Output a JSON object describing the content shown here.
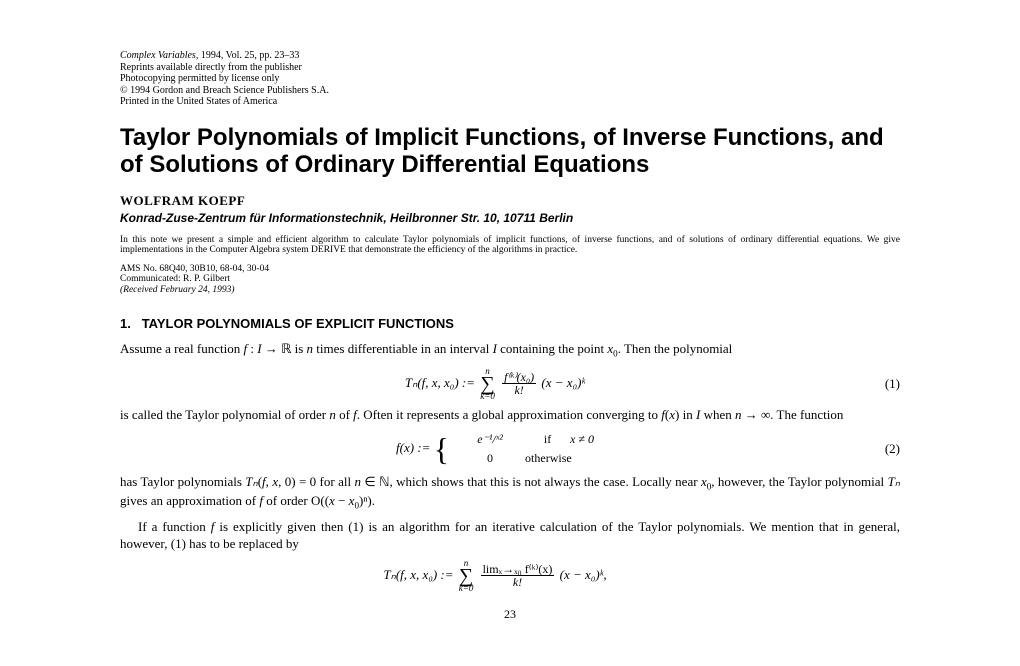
{
  "header": {
    "line1_italic": "Complex Variables",
    "line1_rest": ", 1994, Vol. 25, pp. 23–33",
    "line2": "Reprints available directly from the publisher",
    "line3": "Photocopying permitted by license only",
    "line4": "© 1994 Gordon and Breach Science Publishers S.A.",
    "line5": "Printed in the United States of America"
  },
  "title": "Taylor Polynomials of Implicit Functions, of Inverse Functions, and of Solutions of Ordinary Differential Equations",
  "author": "WOLFRAM KOEPF",
  "affiliation": "Konrad-Zuse-Zentrum für Informationstechnik, Heilbronner Str. 10, 10711 Berlin",
  "abstract": "In this note we present a simple and efficient algorithm to calculate Taylor polynomials of implicit functions, of inverse functions, and of solutions of ordinary differential equations. We give implementations in the Computer Algebra system DERIVE that demonstrate the efficiency of the algorithms in practice.",
  "meta": {
    "ams": "AMS No. 68Q40, 30B10, 68-04, 30-04",
    "communicated": "Communicated: R. P. Gilbert",
    "received": "(Received February 24, 1993)"
  },
  "section1": {
    "number": "1.",
    "heading": "TAYLOR POLYNOMIALS OF EXPLICIT FUNCTIONS"
  },
  "para1a": "Assume a real function ",
  "para1b": " is ",
  "para1c": " times differentiable in an interval ",
  "para1d": " containing the point ",
  "para1e": ". Then the polynomial",
  "eq1": {
    "lhs": "Tₙ(f, x, x₀) := ",
    "sumtop": "n",
    "sumbot": "k=0",
    "fractop": "f⁽ᵏ⁾(x₀)",
    "fracbot": "k!",
    "rhs": "(x − x₀)ᵏ",
    "num": "(1)"
  },
  "para2a": "is called the Taylor polynomial of order ",
  "para2b": " of ",
  "para2c": ". Often it represents a global approximation converging to ",
  "para2d": " in ",
  "para2e": " when ",
  "para2f": ". The function",
  "eq2": {
    "lhs": "f(x) := ",
    "case1a": "e⁻¹/ˣ²",
    "case1b": "if",
    "case1c": "x ≠ 0",
    "case2a": "0",
    "case2b": "otherwise",
    "num": "(2)"
  },
  "para3a": "has Taylor polynomials ",
  "para3b": " for all ",
  "para3c": ", which shows that this is not always the case. Locally near ",
  "para3d": ", however, the Taylor polynomial ",
  "para3e": " gives an approximation of ",
  "para3f": " of order O((",
  "para3g": ")ⁿ).",
  "para4a": "If a function ",
  "para4b": " is explicitly given then (1) is an algorithm for an iterative calculation of the Taylor polynomials. We mention that in general, however, (1) has to be replaced by",
  "eq3": {
    "lhs": "Tₙ(f, x, x₀) := ",
    "sumtop": "n",
    "sumbot": "k=0",
    "fractop": "limₓ→ₓ₀ f⁽ᵏ⁾(x)",
    "fracbot": "k!",
    "rhs": "(x − x₀)ᵏ,"
  },
  "pagenum": "23"
}
